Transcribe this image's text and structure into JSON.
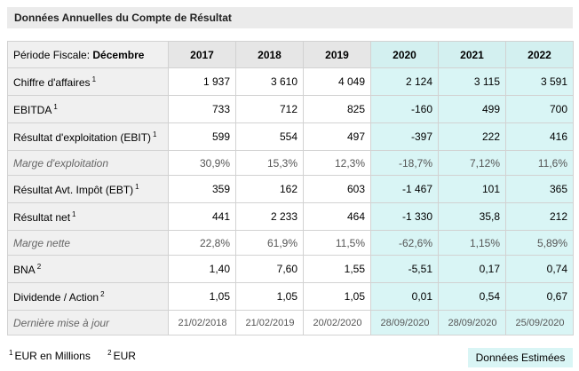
{
  "header": {
    "title": "Données Annuelles du Compte de Résultat"
  },
  "table": {
    "period_prefix": "Période Fiscale:",
    "period_month": "Décembre",
    "years": [
      "2017",
      "2018",
      "2019",
      "2020",
      "2021",
      "2022"
    ],
    "rows": [
      {
        "label": "Chiffre d'affaires",
        "note": "1",
        "style": "main",
        "values": [
          "1 937",
          "3 610",
          "4 049",
          "2 124",
          "3 115",
          "3 591"
        ]
      },
      {
        "label": "EBITDA",
        "note": "1",
        "style": "main",
        "values": [
          "733",
          "712",
          "825",
          "-160",
          "499",
          "700"
        ]
      },
      {
        "label": "Résultat d'exploitation (EBIT)",
        "note": "1",
        "style": "main",
        "values": [
          "599",
          "554",
          "497",
          "-397",
          "222",
          "416"
        ]
      },
      {
        "label": "Marge d'exploitation",
        "note": "",
        "style": "sub",
        "values": [
          "30,9%",
          "15,3%",
          "12,3%",
          "-18,7%",
          "7,12%",
          "11,6%"
        ]
      },
      {
        "label": "Résultat Avt. Impôt (EBT)",
        "note": "1",
        "style": "main",
        "values": [
          "359",
          "162",
          "603",
          "-1 467",
          "101",
          "365"
        ]
      },
      {
        "label": "Résultat net",
        "note": "1",
        "style": "main",
        "values": [
          "441",
          "2 233",
          "464",
          "-1 330",
          "35,8",
          "212"
        ]
      },
      {
        "label": "Marge nette",
        "note": "",
        "style": "sub",
        "values": [
          "22,8%",
          "61,9%",
          "11,5%",
          "-62,6%",
          "1,15%",
          "5,89%"
        ]
      },
      {
        "label": "BNA",
        "note": "2",
        "style": "main",
        "values": [
          "1,40",
          "7,60",
          "1,55",
          "-5,51",
          "0,17",
          "0,74"
        ]
      },
      {
        "label": "Dividende / Action",
        "note": "2",
        "style": "main",
        "values": [
          "1,05",
          "1,05",
          "1,05",
          "0,01",
          "0,54",
          "0,67"
        ]
      },
      {
        "label": "Dernière mise à jour",
        "note": "",
        "style": "upd",
        "values": [
          "21/02/2018",
          "21/02/2019",
          "20/02/2020",
          "28/09/2020",
          "28/09/2020",
          "25/09/2020"
        ]
      }
    ]
  },
  "footnotes": [
    {
      "mark": "1",
      "text": "EUR en Millions"
    },
    {
      "mark": "2",
      "text": "EUR"
    }
  ],
  "legend": {
    "estimates_label": "Données Estimées",
    "estimates_color": "#d9f5f5"
  }
}
